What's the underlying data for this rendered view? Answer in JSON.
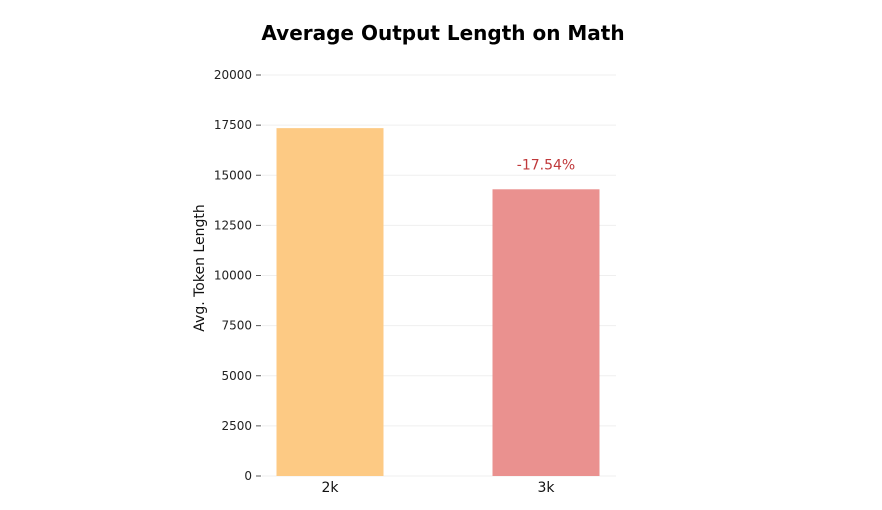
{
  "chart_data": {
    "type": "bar",
    "title": "Average Output Length on Math",
    "xlabel": "",
    "ylabel": "Avg. Token Length",
    "categories": [
      "2k",
      "3k"
    ],
    "values": [
      17350,
      14300
    ],
    "colors": [
      "#fdca84",
      "#ea918f"
    ],
    "ylim": [
      0,
      20000
    ],
    "yticks": [
      0,
      2500,
      5000,
      7500,
      10000,
      12500,
      15000,
      17500,
      20000
    ],
    "grid": true,
    "annotations": [
      {
        "category": "3k",
        "text": "-17.54%",
        "color": "#c0393b"
      }
    ]
  }
}
